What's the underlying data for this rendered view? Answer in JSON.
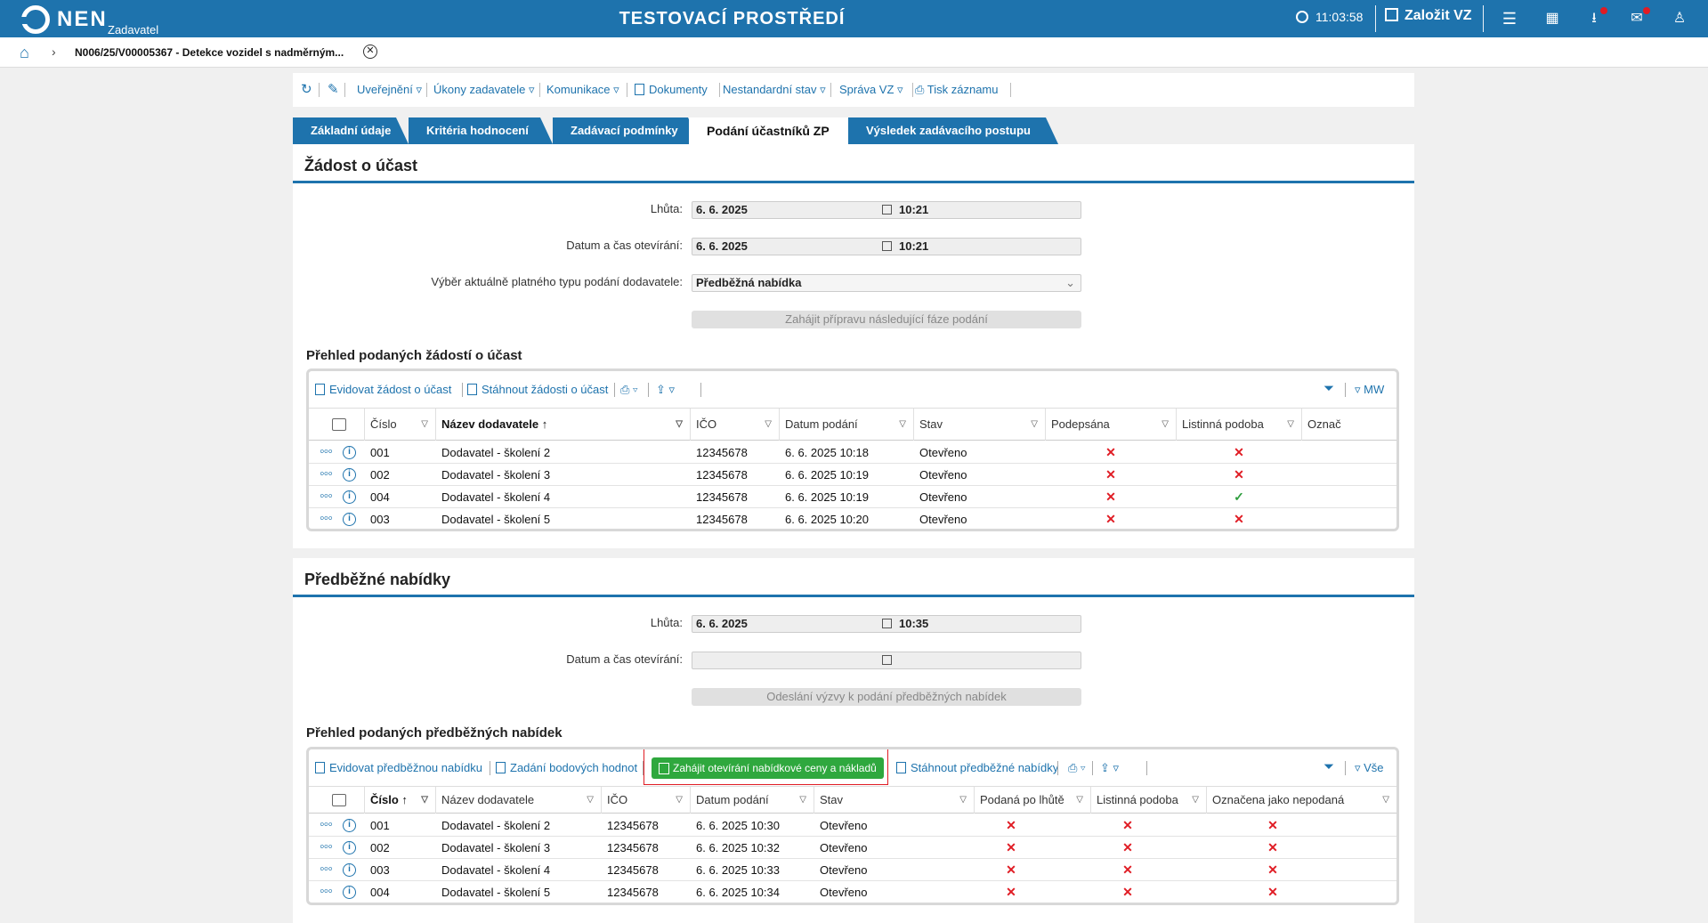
{
  "app": {
    "logo_text": "NEN",
    "logo_sub": "Zadavatel",
    "environment": "TESTOVACÍ PROSTŘEDÍ",
    "clock": "11:03:58",
    "create_label": "Založit VZ"
  },
  "breadcrumb": {
    "label": "N006/25/V00005367 - Detekce vozidel s nadměrným..."
  },
  "toolbar": {
    "items": [
      "Uveřejnění",
      "Úkony zadavatele",
      "Komunikace",
      "Dokumenty",
      "Nestandardní stav",
      "Správa VZ",
      "Tisk záznamu"
    ]
  },
  "tabs": [
    "Základní údaje",
    "Kritéria hodnocení",
    "Zadávací podmínky",
    "Podání účastníků ZP",
    "Výsledek zadávacího postupu"
  ],
  "zadost": {
    "title": "Žádost o účast",
    "lhuta_label": "Lhůta:",
    "lhuta_date": "6. 6. 2025",
    "lhuta_time": "10:21",
    "otevirani_label": "Datum a čas otevírání:",
    "otevirani_date": "6. 6. 2025",
    "otevirani_time": "10:21",
    "typ_label": "Výběr aktuálně platného typu podání dodavatele:",
    "typ_value": "Předběžná nabídka",
    "button": "Zahájit přípravu následující fáze podání",
    "grid_title": "Přehled podaných žádostí o účast",
    "grid_toolbar": [
      "Evidovat žádost o účast",
      "Stáhnout žádosti o účast"
    ],
    "grid_view": "MW",
    "columns": [
      "Číslo",
      "Název dodavatele",
      "IČO",
      "Datum podání",
      "Stav",
      "Podepsána",
      "Listinná podoba",
      "Označ"
    ],
    "rows": [
      {
        "cislo": "001",
        "nazev": "Dodavatel - školení 2",
        "ico": "12345678",
        "datum": "6. 6. 2025 10:18",
        "stav": "Otevřeno",
        "podepsana": "✕",
        "listinna": "✕"
      },
      {
        "cislo": "002",
        "nazev": "Dodavatel - školení 3",
        "ico": "12345678",
        "datum": "6. 6. 2025 10:19",
        "stav": "Otevřeno",
        "podepsana": "✕",
        "listinna": "✕"
      },
      {
        "cislo": "004",
        "nazev": "Dodavatel - školení 4",
        "ico": "12345678",
        "datum": "6. 6. 2025 10:19",
        "stav": "Otevřeno",
        "podepsana": "✕",
        "listinna": "✓"
      },
      {
        "cislo": "003",
        "nazev": "Dodavatel - školení 5",
        "ico": "12345678",
        "datum": "6. 6. 2025 10:20",
        "stav": "Otevřeno",
        "podepsana": "✕",
        "listinna": "✕"
      }
    ]
  },
  "predbezne": {
    "title": "Předběžné nabídky",
    "lhuta_label": "Lhůta:",
    "lhuta_date": "6. 6. 2025",
    "lhuta_time": "10:35",
    "otevirani_label": "Datum a čas otevírání:",
    "button": "Odeslání výzvy k podání předběžných nabídek",
    "grid_title": "Přehled podaných předběžných nabídek",
    "grid_toolbar": [
      "Evidovat předběžnou nabídku",
      "Zadání bodových hodnot",
      "Zahájit otevírání nabídkové ceny a nákladů",
      "Stáhnout předběžné nabídky"
    ],
    "grid_view": "Vše",
    "columns": [
      "Číslo",
      "Název dodavatele",
      "IČO",
      "Datum podání",
      "Stav",
      "Podaná po lhůtě",
      "Listinná podoba",
      "Označena jako nepodaná"
    ],
    "rows": [
      {
        "cislo": "001",
        "nazev": "Dodavatel - školení 2",
        "ico": "12345678",
        "datum": "6. 6. 2025 10:30",
        "stav": "Otevřeno",
        "po_lhute": "✕",
        "listinna": "✕",
        "nepodana": "✕"
      },
      {
        "cislo": "002",
        "nazev": "Dodavatel - školení 3",
        "ico": "12345678",
        "datum": "6. 6. 2025 10:32",
        "stav": "Otevřeno",
        "po_lhute": "✕",
        "listinna": "✕",
        "nepodana": "✕"
      },
      {
        "cislo": "003",
        "nazev": "Dodavatel - školení 4",
        "ico": "12345678",
        "datum": "6. 6. 2025 10:33",
        "stav": "Otevřeno",
        "po_lhute": "✕",
        "listinna": "✕",
        "nepodana": "✕"
      },
      {
        "cislo": "004",
        "nazev": "Dodavatel - školení 5",
        "ico": "12345678",
        "datum": "6. 6. 2025 10:34",
        "stav": "Otevřeno",
        "po_lhute": "✕",
        "listinna": "✕",
        "nepodana": "✕"
      }
    ]
  },
  "colors": {
    "brand": "#1e73ad",
    "green": "#2fa83e",
    "red": "#e01c24"
  }
}
